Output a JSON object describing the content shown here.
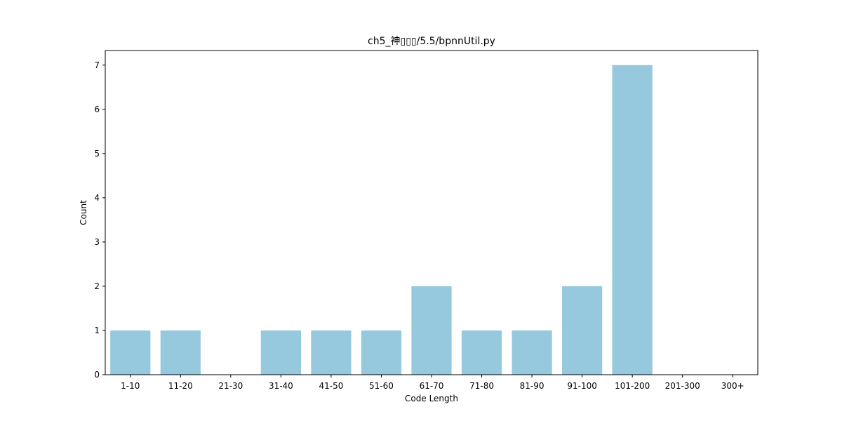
{
  "chart_data": {
    "type": "bar",
    "title": "ch5_神▯▯▯/5.5/bpnnUtil.py",
    "xlabel": "Code Length",
    "ylabel": "Count",
    "categories": [
      "1-10",
      "11-20",
      "21-30",
      "31-40",
      "41-50",
      "51-60",
      "61-70",
      "71-80",
      "81-90",
      "91-100",
      "101-200",
      "201-300",
      "300+"
    ],
    "values": [
      1,
      1,
      0,
      1,
      1,
      1,
      2,
      1,
      1,
      2,
      7,
      0,
      0
    ],
    "yticks": [
      "0",
      "1",
      "2",
      "3",
      "4",
      "5",
      "6",
      "7"
    ],
    "ylim": [
      0,
      7.33
    ],
    "bar_color": "#96c9de",
    "grid": false,
    "legend": "none"
  }
}
